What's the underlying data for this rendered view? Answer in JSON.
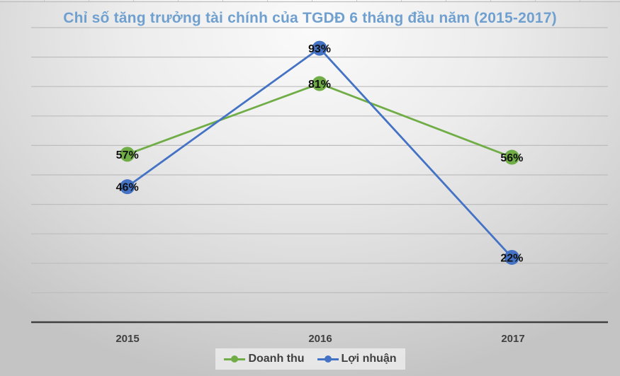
{
  "chart_data": {
    "type": "line",
    "title": "Chỉ số tăng trưởng tài chính của TGDĐ 6 tháng đầu năm (2015-2017)",
    "xlabel": "",
    "ylabel": "",
    "categories": [
      "2015",
      "2016",
      "2017"
    ],
    "series": [
      {
        "name": "Doanh thu",
        "values": [
          57,
          81,
          56
        ],
        "labels": [
          "57%",
          "81%",
          "56%"
        ],
        "color": "#70ad47"
      },
      {
        "name": "Lợi nhuận",
        "values": [
          46,
          93,
          22
        ],
        "labels": [
          "46%",
          "93%",
          "22%"
        ],
        "color": "#4472c4"
      }
    ],
    "ylim": [
      0,
      100
    ],
    "y_gridline_step": 10,
    "y_axis_labels_visible": false,
    "grid": true,
    "legend_position": "bottom",
    "value_format": "percent"
  }
}
